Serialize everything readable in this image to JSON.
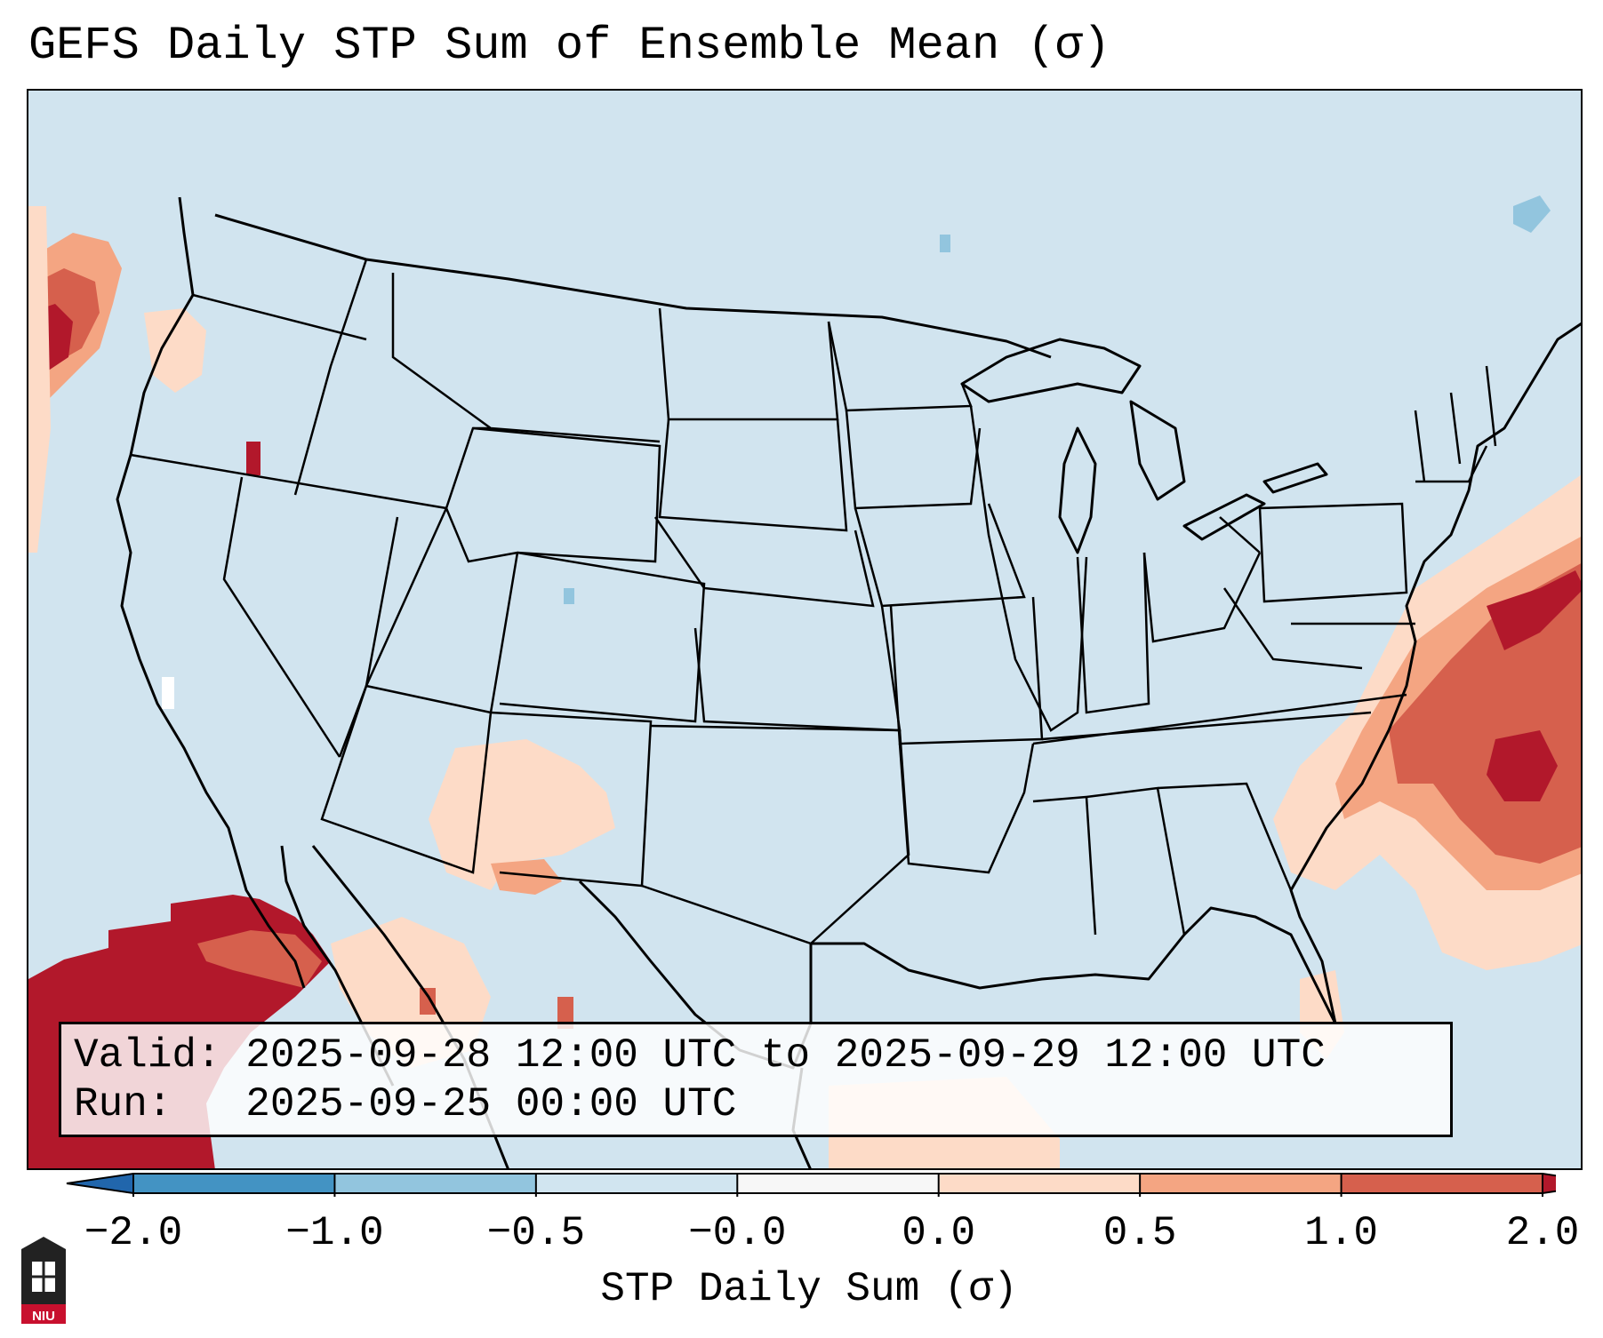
{
  "title": "GEFS Daily STP Sum of Ensemble Mean (σ)",
  "info": {
    "valid_line": "Valid: 2025-09-28 12:00 UTC to 2025-09-29 12:00 UTC",
    "run_line": "Run:   2025-09-25 00:00 UTC"
  },
  "colorbar": {
    "label": "STP Daily Sum (σ)",
    "ticks": [
      "−2.0",
      "−1.0",
      "−0.5",
      "−0.0",
      "0.0",
      "0.5",
      "1.0",
      "2.0"
    ],
    "bins": [
      {
        "name": "below -2.0",
        "color": "#2166ac"
      },
      {
        "name": "-2.0 to -1.0",
        "color": "#4393c3"
      },
      {
        "name": "-1.0 to -0.5",
        "color": "#92c5de"
      },
      {
        "name": "-0.5 to -0.0",
        "color": "#d1e5f0"
      },
      {
        "name": "-0.0 to 0.0",
        "color": "#f7f7f7"
      },
      {
        "name": "0.0 to 0.5",
        "color": "#fddbc7"
      },
      {
        "name": "0.5 to 1.0",
        "color": "#f4a582"
      },
      {
        "name": "1.0 to 2.0",
        "color": "#d6604d"
      },
      {
        "name": "above 2.0",
        "color": "#b2182b"
      }
    ]
  },
  "logo": {
    "text": "NIU",
    "color": "#c8102e"
  }
}
